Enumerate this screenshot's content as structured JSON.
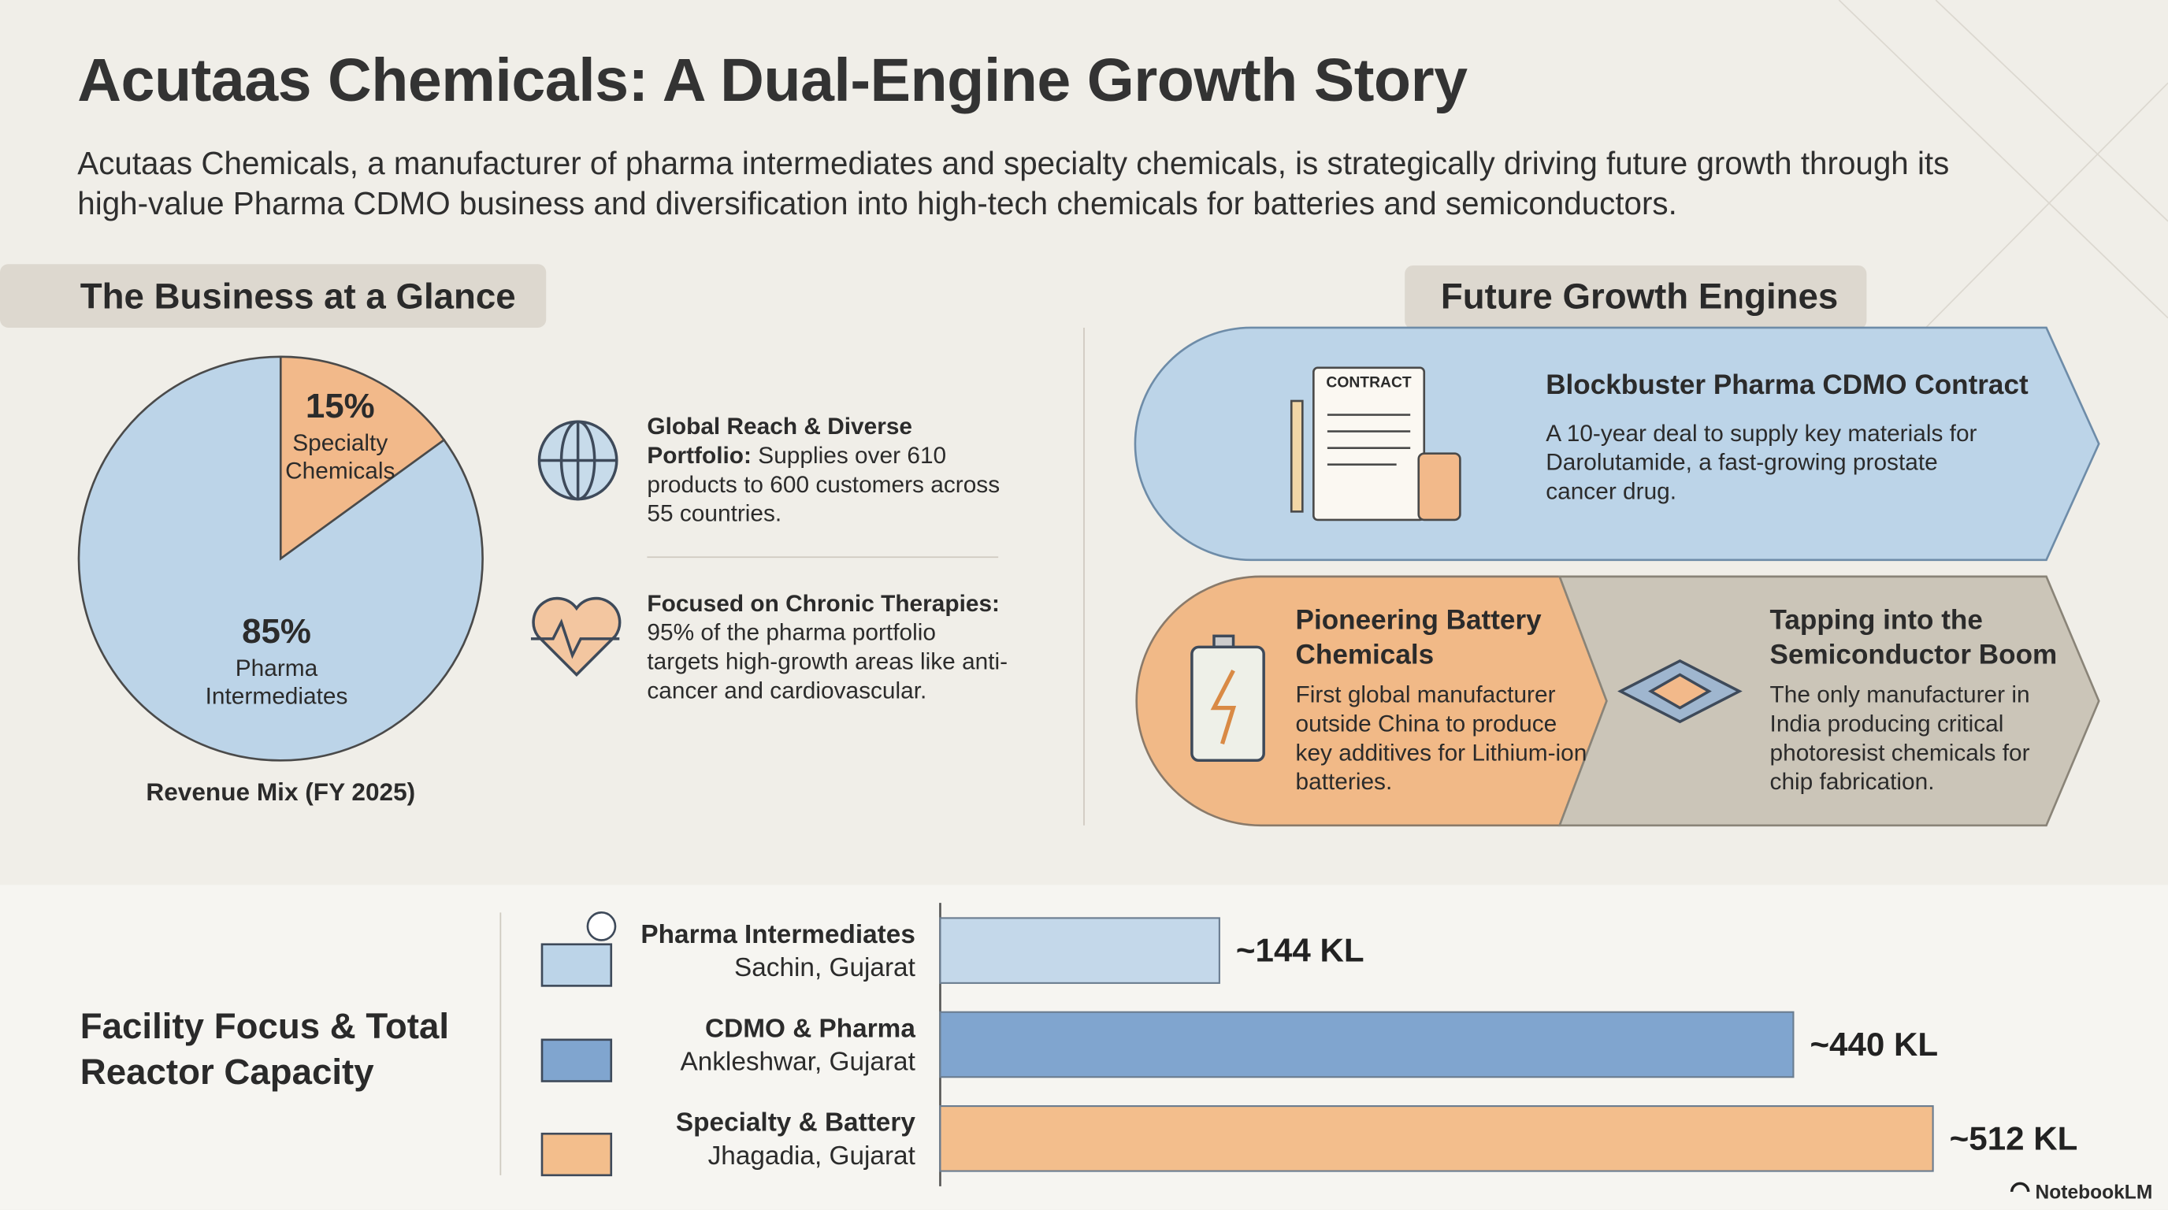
{
  "header": {
    "title": "Acutaas Chemicals: A Dual-Engine Growth Story",
    "subtitle": "Acutaas Chemicals, a manufacturer of pharma intermediates and specialty chemicals, is strategically driving future growth through its high-value Pharma CDMO business and diversification into high-tech chemicals for batteries and semiconductors."
  },
  "glance": {
    "title": "The Business at a Glance",
    "items": [
      {
        "heading": "Global Reach & Diverse Portfolio:",
        "body": "Supplies over 610 products to 600 customers across 55 countries."
      },
      {
        "heading": "Focused on Chronic Therapies:",
        "body": "95% of the pharma portfolio targets high-growth areas like anti-cancer and cardiovascular."
      }
    ]
  },
  "growth": {
    "title": "Future Growth Engines",
    "engines": [
      {
        "icon_label": "CONTRACT",
        "heading": "Blockbuster Pharma CDMO Contract",
        "body": "A 10-year deal to supply key materials for Darolutamide, a fast-growing prostate cancer drug."
      },
      {
        "heading": "Pioneering Battery Chemicals",
        "body": "First global manufacturer outside China to produce key additives for Lithium-ion batteries."
      },
      {
        "heading": "Tapping into the Semiconductor Boom",
        "body": "The only manufacturer in India producing critical photoresist chemicals for chip fabrication."
      }
    ]
  },
  "chart_data": [
    {
      "type": "pie",
      "title": "Revenue Mix (FY 2025)",
      "categories": [
        "Specialty Chemicals",
        "Pharma Intermediates"
      ],
      "values": [
        15,
        85
      ],
      "value_labels": [
        "15%",
        "85%"
      ],
      "colors": [
        "#f2b98a",
        "#bcd4e8"
      ]
    },
    {
      "type": "bar",
      "orientation": "horizontal",
      "title": "Facility Focus & Total Reactor Capacity",
      "categories": [
        "Pharma Intermediates",
        "CDMO & Pharma",
        "Specialty & Battery"
      ],
      "locations": [
        "Sachin, Gujarat",
        "Ankleshwar, Gujarat",
        "Jhagadia, Gujarat"
      ],
      "values": [
        144,
        440,
        512
      ],
      "value_labels": [
        "~144 KL",
        "~440 KL",
        "~512 KL"
      ],
      "colors": [
        "#c4d8ea",
        "#80a5cf",
        "#f3be8c"
      ]
    }
  ],
  "footer": {
    "brand": "NotebookLM"
  }
}
